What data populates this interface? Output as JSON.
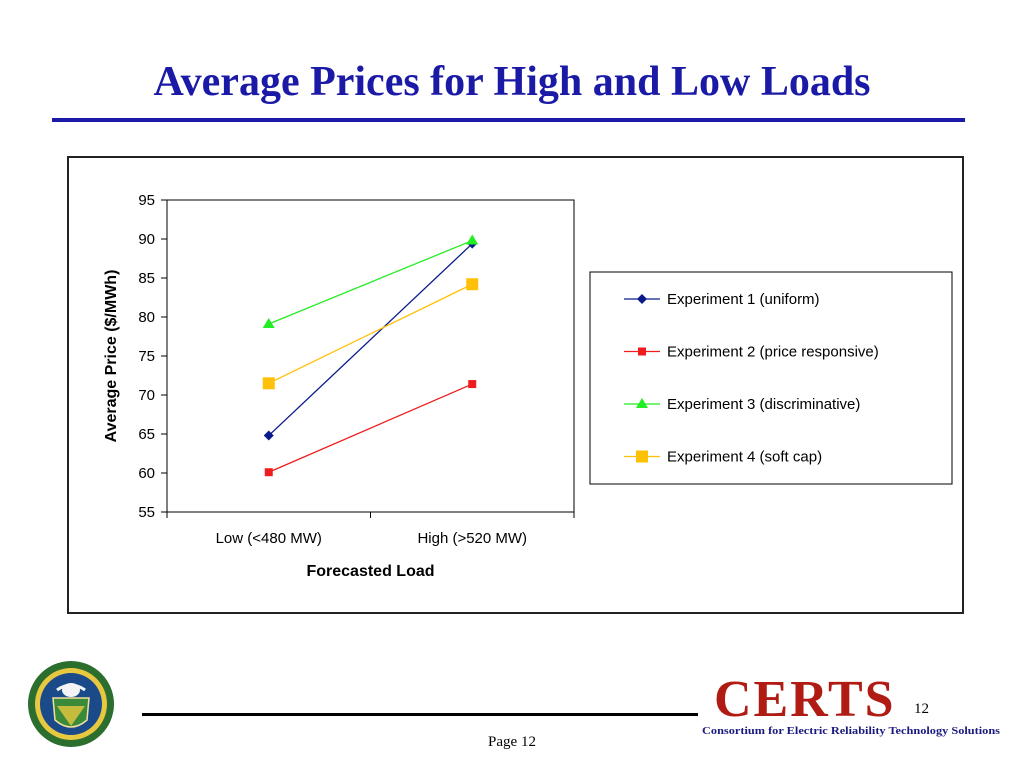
{
  "slide": {
    "title": "Average Prices for High and Low Loads",
    "page_label": "Page 12",
    "slide_number": "12",
    "title_color": "#1a1aa6"
  },
  "logos": {
    "certs_word": "CERTS",
    "certs_subtitle": "Consortium for Electric Reliability Technology Solutions",
    "seal_icon": "department-of-energy-seal"
  },
  "chart_data": {
    "type": "line",
    "categories": [
      "Low (<480 MW)",
      "High (>520 MW)"
    ],
    "xlabel": "Forecasted Load",
    "ylabel": "Average Price ($/MWh)",
    "ylim": [
      55,
      95
    ],
    "yticks": [
      55,
      60,
      65,
      70,
      75,
      80,
      85,
      90,
      95
    ],
    "grid": false,
    "legend_position": "right",
    "series": [
      {
        "name": "Experiment 1 (uniform)",
        "values": [
          64.8,
          89.4
        ],
        "color": "#0a1a8c",
        "marker": "diamond"
      },
      {
        "name": "Experiment 2 (price responsive)",
        "values": [
          60.1,
          71.4
        ],
        "color": "#ee1c1c",
        "marker": "square"
      },
      {
        "name": "Experiment 3 (discriminative)",
        "values": [
          79.1,
          89.8
        ],
        "color": "#22ee22",
        "marker": "triangle"
      },
      {
        "name": "Experiment 4 (soft cap)",
        "values": [
          71.5,
          84.2
        ],
        "color": "#ffc107",
        "marker": "square-large"
      }
    ]
  }
}
